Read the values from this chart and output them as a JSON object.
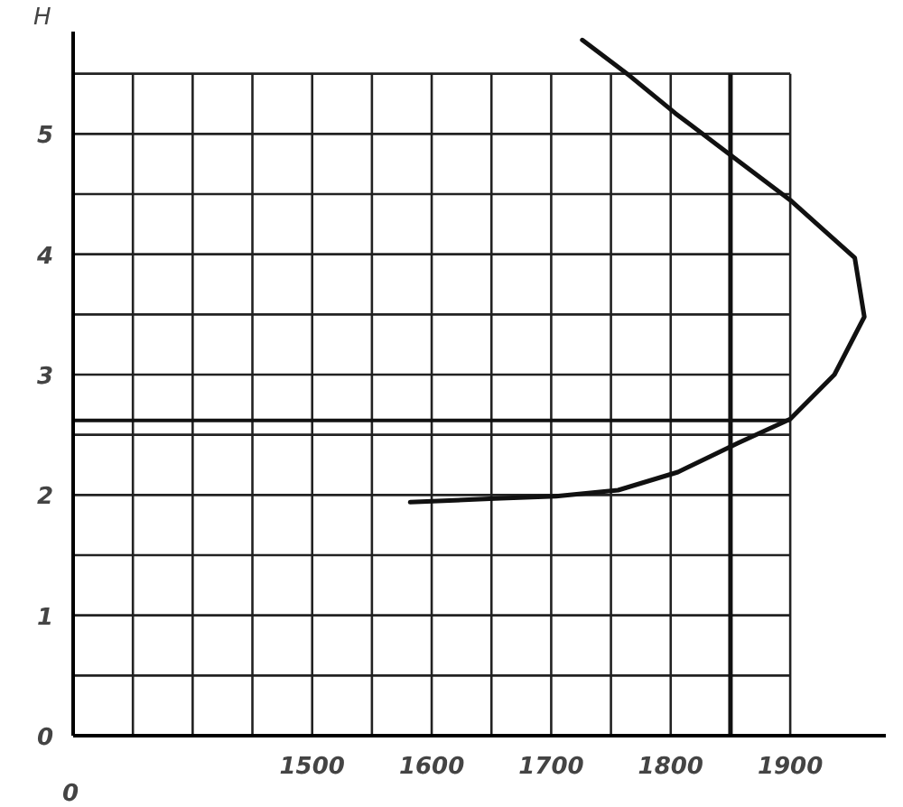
{
  "chart_data": {
    "type": "line",
    "ylabel": "H",
    "series": [
      {
        "color": "#111111",
        "x": [
          1582,
          1653,
          1704,
          1756,
          1806,
          1856,
          1900,
          1937,
          1962,
          1954,
          1900,
          1856,
          1804,
          1766,
          1726
        ],
        "values": [
          1.94,
          1.97,
          1.99,
          2.04,
          2.19,
          2.43,
          2.63,
          3.0,
          3.48,
          3.97,
          4.45,
          4.78,
          5.17,
          5.48,
          5.78
        ]
      }
    ],
    "xlim": [
      1300,
      1980
    ],
    "ylim": [
      0,
      5.85
    ],
    "annotations": [
      "0"
    ],
    "xticks": [
      {
        "value": 1300,
        "label": null
      },
      {
        "value": 1350,
        "label": null
      },
      {
        "value": 1400,
        "label": null
      },
      {
        "value": 1450,
        "label": null
      },
      1500,
      {
        "value": 1550,
        "label": null
      },
      1600,
      {
        "value": 1650,
        "label": null
      },
      1700,
      {
        "value": 1750,
        "label": null
      },
      1800,
      {
        "value": 1850,
        "label": null
      },
      1900
    ],
    "yticks": [
      0,
      {
        "value": 0.5,
        "label": null
      },
      1,
      {
        "value": 1.5,
        "label": null
      },
      2,
      {
        "value": 2.5,
        "label": null
      },
      3,
      {
        "value": 3.5,
        "label": null
      },
      4,
      {
        "value": 4.5,
        "label": null
      },
      5,
      {
        "value": 5.5,
        "label": null
      }
    ],
    "ref_lines": [
      {
        "axis": "y",
        "value": 2.62
      },
      {
        "axis": "x",
        "value": 1850
      }
    ],
    "grid": true,
    "marker": "none",
    "line_style": "solid"
  }
}
